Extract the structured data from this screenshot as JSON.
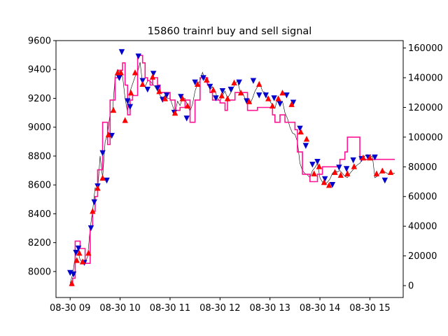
{
  "chart_data": {
    "type": "line",
    "title": "15860 trainrl buy and sell signal",
    "xlabel": "",
    "ylabel": "",
    "y2label": "",
    "grid": false,
    "x_ticks": [
      {
        "t": 9,
        "label": "08-30 09"
      },
      {
        "t": 10,
        "label": "08-30 10"
      },
      {
        "t": 11,
        "label": "08-30 11"
      },
      {
        "t": 12,
        "label": "08-30 12"
      },
      {
        "t": 13,
        "label": "08-30 13"
      },
      {
        "t": 14,
        "label": "08-30 14"
      },
      {
        "t": 15,
        "label": "08-30 15"
      }
    ],
    "xlim": [
      "08-30 08:43",
      "08-30 15:40"
    ],
    "ylim": [
      7820,
      9600
    ],
    "y_ticks": [
      8000,
      8200,
      8400,
      8600,
      8800,
      9000,
      9200,
      9400,
      9600
    ],
    "y2lim": [
      -8000,
      165000
    ],
    "y2_ticks": [
      0,
      20000,
      40000,
      60000,
      80000,
      100000,
      120000,
      140000,
      160000
    ],
    "colors": {
      "price": "#000000",
      "equity": "#ff1493",
      "buy": "#ff0000",
      "sell": "#0000cd"
    },
    "price_series": {
      "name": "",
      "x": [
        "09:00",
        "09:03",
        "09:06",
        "09:09",
        "09:12",
        "09:15",
        "09:18",
        "09:21",
        "09:24",
        "09:27",
        "09:30",
        "09:33",
        "09:36",
        "09:39",
        "09:42",
        "09:45",
        "09:48",
        "09:51",
        "09:54",
        "09:57",
        "10:00",
        "10:03",
        "10:06",
        "10:09",
        "10:12",
        "10:15",
        "10:18",
        "10:21",
        "10:24",
        "10:27",
        "10:30",
        "10:33",
        "10:36",
        "10:39",
        "10:42",
        "10:45",
        "10:48",
        "10:51",
        "10:54",
        "10:57",
        "11:00",
        "11:03",
        "11:06",
        "11:09",
        "11:12",
        "11:15",
        "11:18",
        "11:21",
        "11:24",
        "11:27",
        "11:30",
        "11:33",
        "11:36",
        "11:39",
        "11:42",
        "11:45",
        "11:48",
        "11:51",
        "11:54",
        "11:57",
        "12:00",
        "12:03",
        "12:06",
        "12:09",
        "12:12",
        "12:15",
        "12:18",
        "12:21",
        "12:24",
        "12:27",
        "12:30",
        "12:33",
        "12:36",
        "12:39",
        "12:42",
        "12:45",
        "12:48",
        "12:51",
        "12:54",
        "12:57",
        "13:00",
        "13:03",
        "13:06",
        "13:09",
        "13:12",
        "13:15",
        "13:18",
        "13:21",
        "13:24",
        "13:27",
        "13:30",
        "13:33",
        "13:36",
        "13:39",
        "13:42",
        "13:45",
        "13:48",
        "13:51",
        "13:54",
        "13:57",
        "14:00",
        "14:03",
        "14:06",
        "14:09",
        "14:12",
        "14:15",
        "14:18",
        "14:21",
        "14:24",
        "14:27",
        "14:30",
        "14:33",
        "14:36",
        "14:39",
        "14:42",
        "14:45",
        "14:48",
        "14:51",
        "14:54",
        "14:57",
        "15:00",
        "15:03",
        "15:06",
        "15:09",
        "15:12",
        "15:15",
        "15:18",
        "15:21",
        "15:24",
        "15:27",
        "15:30"
      ],
      "values": [
        7920,
        7980,
        8100,
        8150,
        8080,
        8060,
        8070,
        8100,
        8300,
        8420,
        8580,
        8560,
        8800,
        8650,
        8900,
        8950,
        9100,
        9120,
        9350,
        9400,
        9380,
        9350,
        9200,
        9100,
        9250,
        9300,
        9350,
        9380,
        9450,
        9300,
        9280,
        9320,
        9320,
        9300,
        9280,
        9250,
        9220,
        9200,
        9220,
        9200,
        9200,
        9150,
        9100,
        9180,
        9150,
        9200,
        9200,
        9150,
        9110,
        9160,
        9250,
        9300,
        9320,
        9380,
        9330,
        9300,
        9260,
        9280,
        9250,
        9200,
        9180,
        9220,
        9250,
        9200,
        9230,
        9260,
        9300,
        9320,
        9250,
        9240,
        9200,
        9180,
        9160,
        9200,
        9250,
        9280,
        9300,
        9250,
        9240,
        9200,
        9180,
        9150,
        9130,
        9200,
        9160,
        9180,
        9100,
        9060,
        9000,
        8960,
        8950,
        8900,
        8750,
        8700,
        8680,
        8670,
        8650,
        8700,
        8720,
        8750,
        8650,
        8620,
        8600,
        8620,
        8640,
        8680,
        8700,
        8690,
        8700,
        8680,
        8660,
        8650,
        8680,
        8700,
        8720,
        8740,
        8750,
        8780,
        8800,
        8810,
        8790,
        8800,
        8650,
        8660,
        8680,
        8700,
        8690,
        8680,
        8670,
        8680,
        8680
      ]
    },
    "equity_series": {
      "name": "",
      "x": [
        "09:00",
        "09:03",
        "09:06",
        "09:09",
        "09:12",
        "09:15",
        "09:18",
        "09:21",
        "09:24",
        "09:27",
        "09:30",
        "09:33",
        "09:36",
        "09:39",
        "09:42",
        "09:45",
        "09:48",
        "09:51",
        "09:54",
        "09:57",
        "10:00",
        "10:03",
        "10:06",
        "10:09",
        "10:12",
        "10:15",
        "10:18",
        "10:21",
        "10:24",
        "10:27",
        "10:30",
        "10:33",
        "10:36",
        "10:39",
        "10:42",
        "10:45",
        "10:48",
        "10:51",
        "10:54",
        "10:57",
        "11:00",
        "11:03",
        "11:06",
        "11:09",
        "11:12",
        "11:15",
        "11:18",
        "11:21",
        "11:24",
        "11:27",
        "11:30",
        "11:33",
        "11:36",
        "11:39",
        "11:42",
        "11:45",
        "11:48",
        "11:51",
        "11:54",
        "11:57",
        "12:00",
        "12:03",
        "12:06",
        "12:09",
        "12:12",
        "12:15",
        "12:18",
        "12:21",
        "12:24",
        "12:27",
        "12:30",
        "12:33",
        "12:36",
        "12:39",
        "12:42",
        "12:45",
        "12:48",
        "12:51",
        "12:54",
        "12:57",
        "13:00",
        "13:03",
        "13:06",
        "13:09",
        "13:12",
        "13:15",
        "13:18",
        "13:21",
        "13:24",
        "13:27",
        "13:30",
        "13:33",
        "13:36",
        "13:39",
        "13:42",
        "13:45",
        "13:48",
        "13:51",
        "13:54",
        "13:57",
        "14:00",
        "14:03",
        "14:06",
        "14:09",
        "14:12",
        "14:15",
        "14:18",
        "14:21",
        "14:24",
        "14:27",
        "14:30",
        "14:33",
        "14:36",
        "14:39",
        "14:42",
        "14:45",
        "14:48",
        "14:51",
        "14:54",
        "14:57",
        "15:00",
        "15:03",
        "15:06",
        "15:09",
        "15:12",
        "15:15",
        "15:18",
        "15:21",
        "15:24",
        "15:27",
        "15:30"
      ],
      "values": [
        0,
        5000,
        30000,
        30000,
        25000,
        25000,
        15000,
        15000,
        40000,
        50000,
        60000,
        78000,
        78000,
        110000,
        110000,
        95000,
        125000,
        125000,
        140000,
        145000,
        145000,
        150000,
        135000,
        115000,
        125000,
        128000,
        128000,
        155000,
        155000,
        150000,
        140000,
        138000,
        135000,
        140000,
        140000,
        135000,
        130000,
        130000,
        130000,
        130000,
        125000,
        125000,
        118000,
        118000,
        120000,
        120000,
        125000,
        125000,
        110000,
        110000,
        125000,
        125000,
        140000,
        140000,
        140000,
        135000,
        130000,
        125000,
        125000,
        125000,
        123000,
        123000,
        118000,
        125000,
        125000,
        125000,
        130000,
        130000,
        130000,
        130000,
        130000,
        118000,
        118000,
        118000,
        118000,
        120000,
        120000,
        120000,
        120000,
        120000,
        120000,
        115000,
        110000,
        110000,
        115000,
        115000,
        110000,
        110000,
        110000,
        110000,
        105000,
        90000,
        90000,
        75000,
        75000,
        75000,
        70000,
        70000,
        70000,
        75000,
        75000,
        80000,
        80000,
        80000,
        80000,
        80000,
        80000,
        80000,
        85000,
        85000,
        90000,
        100000,
        100000,
        100000,
        100000,
        100000,
        85000,
        85000,
        85000,
        85000,
        85000,
        85000,
        85000,
        85000,
        85000,
        85000,
        85000,
        85000,
        85000,
        85000,
        85000
      ]
    },
    "buy_signals": {
      "name": "",
      "points": [
        [
          "09:02",
          7920
        ],
        [
          "09:08",
          8080
        ],
        [
          "09:11",
          8130
        ],
        [
          "09:15",
          8070
        ],
        [
          "09:22",
          8130
        ],
        [
          "09:27",
          8420
        ],
        [
          "09:33",
          8580
        ],
        [
          "09:39",
          8650
        ],
        [
          "09:46",
          8950
        ],
        [
          "09:52",
          9120
        ],
        [
          "09:57",
          9380
        ],
        [
          "10:01",
          9380
        ],
        [
          "10:06",
          9050
        ],
        [
          "10:13",
          9240
        ],
        [
          "10:18",
          9380
        ],
        [
          "10:27",
          9300
        ],
        [
          "10:39",
          9350
        ],
        [
          "10:47",
          9250
        ],
        [
          "10:54",
          9200
        ],
        [
          "11:06",
          9100
        ],
        [
          "11:15",
          9200
        ],
        [
          "11:21",
          9150
        ],
        [
          "11:33",
          9300
        ],
        [
          "11:44",
          9330
        ],
        [
          "11:52",
          9260
        ],
        [
          "12:02",
          9220
        ],
        [
          "12:09",
          9200
        ],
        [
          "12:17",
          9310
        ],
        [
          "12:25",
          9240
        ],
        [
          "12:35",
          9180
        ],
        [
          "12:47",
          9300
        ],
        [
          "12:58",
          9200
        ],
        [
          "13:03",
          9150
        ],
        [
          "13:10",
          9200
        ],
        [
          "13:15",
          9240
        ],
        [
          "13:26",
          9160
        ],
        [
          "13:37",
          8970
        ],
        [
          "13:44",
          8920
        ],
        [
          "13:53",
          8680
        ],
        [
          "13:59",
          8730
        ],
        [
          "14:05",
          8620
        ],
        [
          "14:11",
          8600
        ],
        [
          "14:18",
          8690
        ],
        [
          "14:25",
          8670
        ],
        [
          "14:33",
          8680
        ],
        [
          "14:41",
          8730
        ],
        [
          "14:52",
          8790
        ],
        [
          "15:00",
          8790
        ],
        [
          "15:08",
          8680
        ],
        [
          "15:15",
          8700
        ],
        [
          "15:25",
          8690
        ]
      ]
    },
    "sell_signals": {
      "name": "",
      "points": [
        [
          "09:00",
          7990
        ],
        [
          "09:04",
          7980
        ],
        [
          "09:07",
          8130
        ],
        [
          "09:10",
          8160
        ],
        [
          "09:17",
          8060
        ],
        [
          "09:25",
          8300
        ],
        [
          "09:29",
          8480
        ],
        [
          "09:33",
          8590
        ],
        [
          "09:39",
          8820
        ],
        [
          "09:44",
          8630
        ],
        [
          "09:50",
          8940
        ],
        [
          "09:59",
          9340
        ],
        [
          "10:02",
          9520
        ],
        [
          "10:09",
          9180
        ],
        [
          "10:12",
          9140
        ],
        [
          "10:22",
          9490
        ],
        [
          "10:27",
          9320
        ],
        [
          "10:33",
          9260
        ],
        [
          "10:40",
          9370
        ],
        [
          "10:45",
          9270
        ],
        [
          "10:51",
          9190
        ],
        [
          "10:56",
          9220
        ],
        [
          "11:05",
          9100
        ],
        [
          "11:13",
          9210
        ],
        [
          "11:20",
          9060
        ],
        [
          "11:30",
          9310
        ],
        [
          "11:40",
          9340
        ],
        [
          "11:48",
          9280
        ],
        [
          "11:55",
          9200
        ],
        [
          "12:03",
          9250
        ],
        [
          "12:13",
          9260
        ],
        [
          "12:23",
          9310
        ],
        [
          "12:32",
          9180
        ],
        [
          "12:40",
          9320
        ],
        [
          "12:47",
          9220
        ],
        [
          "12:55",
          9220
        ],
        [
          "13:05",
          9200
        ],
        [
          "13:12",
          9160
        ],
        [
          "13:20",
          9220
        ],
        [
          "13:28",
          9170
        ],
        [
          "13:36",
          8990
        ],
        [
          "13:43",
          8870
        ],
        [
          "13:51",
          8740
        ],
        [
          "13:57",
          8760
        ],
        [
          "14:06",
          8640
        ],
        [
          "14:15",
          8600
        ],
        [
          "14:23",
          8720
        ],
        [
          "14:32",
          8710
        ],
        [
          "14:40",
          8770
        ],
        [
          "14:50",
          8780
        ],
        [
          "14:58",
          8790
        ],
        [
          "15:06",
          8790
        ],
        [
          "15:18",
          8630
        ]
      ]
    }
  }
}
